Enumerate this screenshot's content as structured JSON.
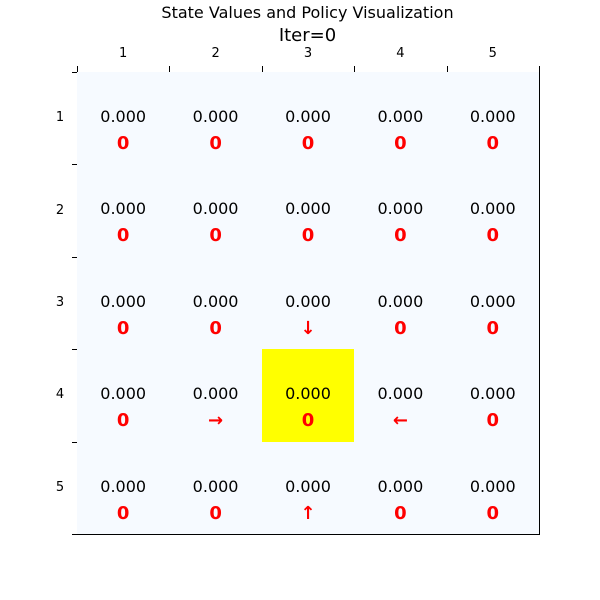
{
  "chart_data": {
    "type": "table",
    "title": "State Values and Policy Visualization",
    "subtitle": "Iter=0",
    "xticks": [
      "1",
      "2",
      "3",
      "4",
      "5"
    ],
    "yticks": [
      "1",
      "2",
      "3",
      "4",
      "5"
    ],
    "highlight": {
      "row": 4,
      "col": 3,
      "color": "#ffff00"
    },
    "cell_color": "#f6faff",
    "policy_color": "#ff0000",
    "values": [
      [
        "0.000",
        "0.000",
        "0.000",
        "0.000",
        "0.000"
      ],
      [
        "0.000",
        "0.000",
        "0.000",
        "0.000",
        "0.000"
      ],
      [
        "0.000",
        "0.000",
        "0.000",
        "0.000",
        "0.000"
      ],
      [
        "0.000",
        "0.000",
        "0.000",
        "0.000",
        "0.000"
      ],
      [
        "0.000",
        "0.000",
        "0.000",
        "0.000",
        "0.000"
      ]
    ],
    "policy": [
      [
        "0",
        "0",
        "0",
        "0",
        "0"
      ],
      [
        "0",
        "0",
        "0",
        "0",
        "0"
      ],
      [
        "0",
        "0",
        "↓",
        "0",
        "0"
      ],
      [
        "0",
        "→",
        "0",
        "←",
        "0"
      ],
      [
        "0",
        "0",
        "↑",
        "0",
        "0"
      ]
    ]
  }
}
